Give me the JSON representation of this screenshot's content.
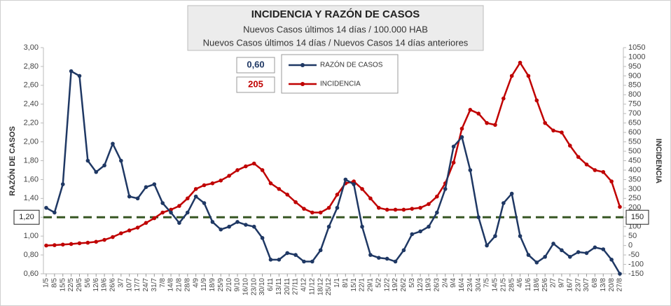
{
  "chart_data": {
    "type": "line",
    "title": "INCIDENCIA Y RAZÓN DE CASOS",
    "subtitle": [
      "Nuevos Casos últimos 14 días / 100.000 HAB",
      "Nuevos Casos últimos 14 días / Nuevos Casos 14 días anteriores"
    ],
    "ylabel": "RAZÓN DE CASOS",
    "y2label": "INCIDENCIA",
    "annotations": [
      {
        "text": "0,60",
        "color": "#1f3864"
      },
      {
        "text": "205",
        "color": "#c00000"
      }
    ],
    "reference_line": {
      "value": 1.2,
      "label": "1,20",
      "y2_value": 150,
      "color": "#375623"
    },
    "categories": [
      "1/5",
      "8/5",
      "15/5",
      "22/5",
      "29/5",
      "5/6",
      "12/6",
      "19/6",
      "26/6",
      "3/7",
      "10/7",
      "17/7",
      "24/7",
      "31/7",
      "7/8",
      "14/8",
      "21/8",
      "28/8",
      "4/9",
      "11/9",
      "18/9",
      "25/9",
      "2/10",
      "9/10",
      "16/10",
      "23/10",
      "30/10",
      "6/11",
      "13/11",
      "20/11",
      "27/11",
      "4/12",
      "11/12",
      "18/12",
      "25/12",
      "1/1",
      "8/1",
      "15/1",
      "22/1",
      "29/1",
      "5/2",
      "12/2",
      "19/2",
      "26/2",
      "5/3",
      "12/3",
      "19/3",
      "26/3",
      "2/4",
      "9/4",
      "16/4",
      "23/4",
      "30/4",
      "7/5",
      "14/5",
      "21/5",
      "28/5",
      "4/6",
      "11/6",
      "18/6",
      "25/6",
      "2/7",
      "9/7",
      "16/7",
      "23/7",
      "30/7",
      "6/8",
      "13/8",
      "20/8",
      "27/8"
    ],
    "series": [
      {
        "name": "RAZÓN DE CASOS",
        "color": "#1f3864",
        "values": [
          1.3,
          1.25,
          1.55,
          2.75,
          2.7,
          1.8,
          1.68,
          1.75,
          1.98,
          1.8,
          1.42,
          1.4,
          1.52,
          1.55,
          1.35,
          1.25,
          1.14,
          1.25,
          1.42,
          1.35,
          1.15,
          1.07,
          1.1,
          1.15,
          1.12,
          1.1,
          0.98,
          0.75,
          0.75,
          0.82,
          0.8,
          0.73,
          0.73,
          0.85,
          1.1,
          1.3,
          1.6,
          1.55,
          1.1,
          0.8,
          0.77,
          0.76,
          0.73,
          0.85,
          1.02,
          1.05,
          1.1,
          1.25,
          1.5,
          1.95,
          2.05,
          1.7,
          1.2,
          0.9,
          1.0,
          1.35,
          1.45,
          1.0,
          0.8,
          0.72,
          0.78,
          0.92,
          0.85,
          0.78,
          0.83,
          0.82,
          0.88,
          0.86,
          0.75,
          0.6
        ]
      },
      {
        "name": "INCIDENCIA",
        "color": "#c00000",
        "axis": "y2",
        "values": [
          0,
          2,
          5,
          8,
          12,
          15,
          20,
          30,
          45,
          65,
          80,
          95,
          120,
          145,
          175,
          190,
          210,
          250,
          300,
          320,
          330,
          345,
          370,
          400,
          420,
          435,
          400,
          330,
          300,
          270,
          230,
          195,
          175,
          175,
          200,
          270,
          330,
          340,
          300,
          250,
          200,
          190,
          190,
          190,
          195,
          200,
          220,
          260,
          330,
          440,
          620,
          720,
          700,
          650,
          640,
          780,
          900,
          970,
          900,
          770,
          650,
          610,
          600,
          530,
          470,
          430,
          400,
          390,
          340,
          205
        ]
      }
    ],
    "ylim": [
      0.6,
      3.0
    ],
    "yticks": [
      {
        "value": 0.6,
        "label": "0,60"
      },
      {
        "value": 0.8,
        "label": "0,80"
      },
      {
        "value": 1.0,
        "label": "1,00"
      },
      {
        "value": 1.2,
        "label": "1,20"
      },
      {
        "value": 1.4,
        "label": "1,40"
      },
      {
        "value": 1.6,
        "label": "1,60"
      },
      {
        "value": 1.8,
        "label": "1,80"
      },
      {
        "value": 2.0,
        "label": "2,00"
      },
      {
        "value": 2.2,
        "label": "2,20"
      },
      {
        "value": 2.4,
        "label": "2,40"
      },
      {
        "value": 2.6,
        "label": "2,60"
      },
      {
        "value": 2.8,
        "label": "2,80"
      },
      {
        "value": 3.0,
        "label": "3,00"
      }
    ],
    "y2lim": [
      -150,
      1050
    ],
    "y2ticks": [
      -150,
      -100,
      -50,
      0,
      50,
      100,
      150,
      200,
      250,
      300,
      350,
      400,
      450,
      500,
      550,
      600,
      650,
      700,
      750,
      800,
      850,
      900,
      950,
      1000,
      1050
    ]
  }
}
